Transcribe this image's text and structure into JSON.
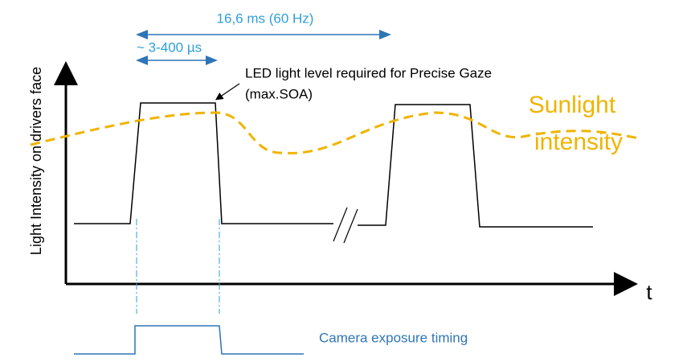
{
  "period_label": "16,6 ms  (60 Hz)",
  "pulse_label": "~ 3-400 µs",
  "led_label": {
    "line1": "LED light level required for Precise Gaze",
    "line2": "(max.SOA)"
  },
  "y_axis_label": "Light Intensity on drivers face",
  "x_axis_label": "t",
  "sunlight_label": {
    "line1": "Sunlight",
    "line2": "intensity"
  },
  "camera_label": "Camera exposure timing"
}
